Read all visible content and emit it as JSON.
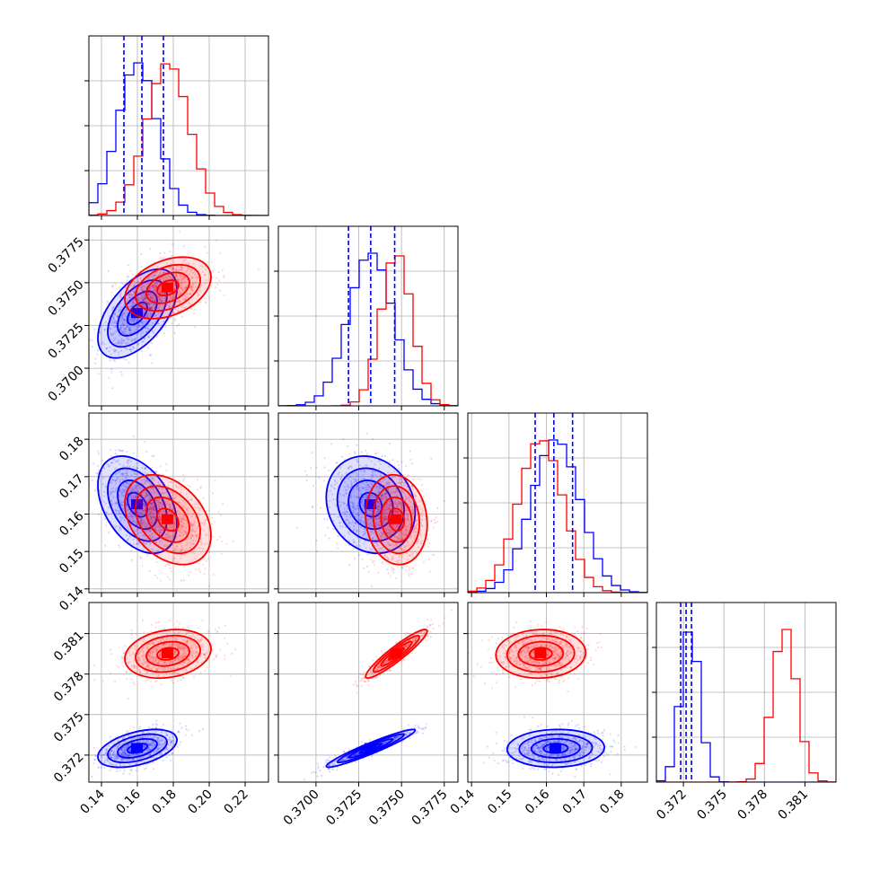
{
  "colors": {
    "series_a": "#0000ff",
    "series_b": "#ff0000",
    "grid": "#b0b0b0",
    "axes": "#000000"
  },
  "chart_data": {
    "type": "corner",
    "series": [
      {
        "color": "#0000ff",
        "means": [
          0.16,
          0.3732,
          0.1625,
          0.3725
        ],
        "sigmas": [
          0.011,
          0.0013,
          0.0065,
          0.0007
        ]
      },
      {
        "color": "#ff0000",
        "means": [
          0.177,
          0.3747,
          0.1585,
          0.3795
        ],
        "sigmas": [
          0.012,
          0.0009,
          0.006,
          0.0009
        ]
      }
    ],
    "quantile_lines": [
      [
        0.1525,
        0.1625,
        0.1745
      ],
      [
        0.3719,
        0.3732,
        0.3746
      ],
      [
        0.157,
        0.162,
        0.167
      ],
      [
        0.3718,
        0.3722,
        0.3726
      ]
    ],
    "ranges": [
      [
        0.133,
        0.233
      ],
      [
        0.3678,
        0.3783
      ],
      [
        0.139,
        0.187
      ],
      [
        0.37,
        0.3833
      ]
    ],
    "ticks": [
      [
        0.14,
        0.16,
        0.18,
        0.2,
        0.22
      ],
      [
        0.37,
        0.3725,
        0.375,
        0.3775
      ],
      [
        0.14,
        0.15,
        0.16,
        0.17,
        0.18
      ],
      [
        0.372,
        0.375,
        0.378,
        0.381
      ]
    ],
    "tick_labels": [
      [
        "0.14",
        "0.16",
        "0.18",
        "0.20",
        "0.22"
      ],
      [
        "0.3700",
        "0.3725",
        "0.3750",
        "0.3775"
      ],
      [
        "0.14",
        "0.15",
        "0.16",
        "0.17",
        "0.18"
      ],
      [
        "0.372",
        "0.375",
        "0.378",
        "0.381"
      ]
    ],
    "grid": true,
    "scatter_points": true,
    "contours": true,
    "legend": "none"
  }
}
